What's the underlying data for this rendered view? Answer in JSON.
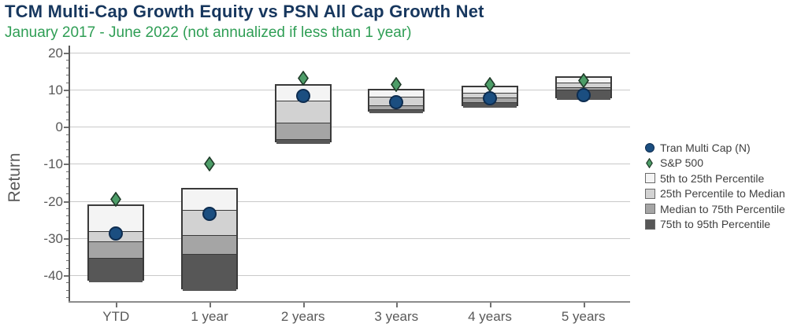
{
  "header": {
    "title": "TCM Multi-Cap Growth Equity vs PSN All Cap Growth Net",
    "subtitle": "January 2017 - June 2022 (not annualized if less than 1 year)"
  },
  "colors": {
    "title": "#17375e",
    "subtitle": "#2f9e55",
    "p5_25": "#f4f4f4",
    "p25_median": "#d2d2d2",
    "median_75": "#a5a5a5",
    "p75_95": "#575757",
    "bar_border": "#3a3a3a",
    "gridline": "#c9c9c9",
    "tran_marker": "#1b4e80",
    "sp500_marker": "#4d9d68",
    "axis_text": "#595959"
  },
  "chart_data": {
    "type": "bar",
    "subtype": "floating-percentile-range",
    "title": "TCM Multi-Cap Growth Equity vs PSN All Cap Growth Net",
    "subtitle": "January 2017 - June 2022 (not annualized if less than 1 year)",
    "xlabel": "",
    "ylabel": "Return",
    "ylim": [
      -47,
      21
    ],
    "yticks": [
      20,
      10,
      0,
      -10,
      -20,
      -30,
      -40
    ],
    "minor_tick_step": 2,
    "grid": "horizontal",
    "legend_position": "right",
    "categories": [
      "YTD",
      "1 year",
      "2 years",
      "3 years",
      "4 years",
      "5 years"
    ],
    "percentile_bars": [
      {
        "category": "YTD",
        "p5": -21.0,
        "p25": -27.7,
        "median": -30.4,
        "p75": -35.0,
        "p95": -41.5
      },
      {
        "category": "1 year",
        "p5": -16.4,
        "p25": -22.0,
        "median": -28.8,
        "p75": -33.8,
        "p95": -43.8
      },
      {
        "category": "2 years",
        "p5": 11.4,
        "p25": 7.5,
        "median": 1.5,
        "p75": -3.0,
        "p95": -4.2
      },
      {
        "category": "3 years",
        "p5": 10.2,
        "p25": 8.6,
        "median": 6.2,
        "p75": 5.1,
        "p95": 4.1
      },
      {
        "category": "4 years",
        "p5": 11.1,
        "p25": 9.5,
        "median": 8.2,
        "p75": 7.0,
        "p95": 5.6
      },
      {
        "category": "5 years",
        "p5": 13.5,
        "p25": 12.4,
        "median": 11.1,
        "p75": 10.3,
        "p95": 7.6
      }
    ],
    "series": [
      {
        "name": "Tran Multi Cap (N)",
        "marker": "circle",
        "color": "#1b4e80",
        "values": [
          -28.7,
          -23.4,
          8.2,
          6.5,
          7.7,
          8.5
        ]
      },
      {
        "name": "S&P 500",
        "marker": "diamond",
        "color": "#4d9d68",
        "values": [
          -20.1,
          -10.5,
          12.5,
          10.8,
          10.9,
          11.9
        ]
      }
    ],
    "legend": [
      {
        "label": "Tran Multi Cap (N)",
        "marker": "circle",
        "color": "#1b4e80"
      },
      {
        "label": "S&P 500",
        "marker": "diamond",
        "color": "#4d9d68"
      },
      {
        "label": "5th to 25th Percentile",
        "marker": "square",
        "color": "#f4f4f4"
      },
      {
        "label": "25th Percentile to Median",
        "marker": "square",
        "color": "#d2d2d2"
      },
      {
        "label": "Median to 75th Percentile",
        "marker": "square",
        "color": "#a5a5a5"
      },
      {
        "label": "75th to 95th Percentile",
        "marker": "square",
        "color": "#575757"
      }
    ]
  }
}
